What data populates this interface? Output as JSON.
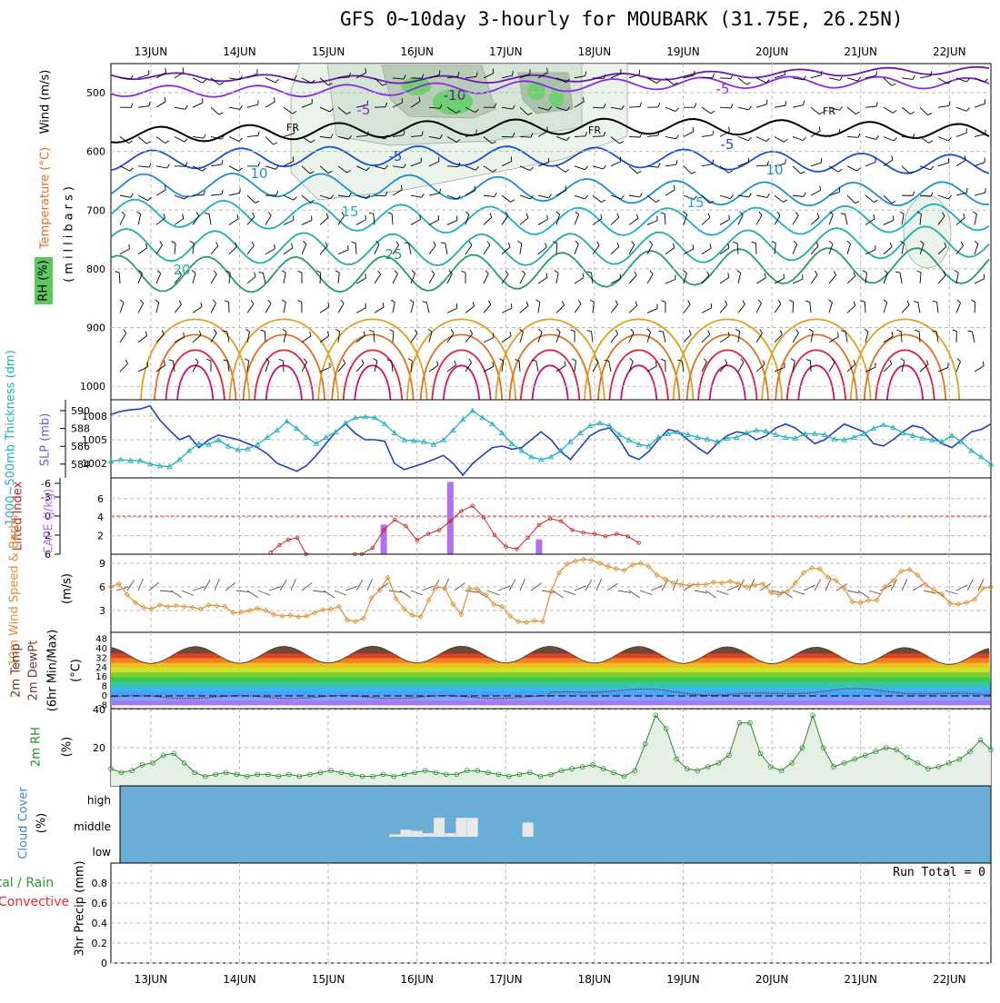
{
  "title": "GFS 0~10day 3-hourly for MOUBARK (31.75E, 26.25N)",
  "chart_data": [
    {
      "panel": "upper-air",
      "type": "contour",
      "ylabel_parts": [
        "RH (%)",
        "Temperature (°C)",
        "Wind (m/s)"
      ],
      "ylabel_units": "(millibars)",
      "x_labels": [
        "13JUN",
        "14JUN",
        "15JUN",
        "16JUN",
        "17JUN",
        "18JUN",
        "19JUN",
        "20JUN",
        "21JUN",
        "22JUN"
      ],
      "y_ticks": [
        500,
        600,
        700,
        800,
        900,
        1000
      ],
      "ylim": [
        1000,
        450
      ],
      "contour_labels": [
        "-10",
        "-5",
        "-5",
        "-5",
        "FR",
        "FR",
        "FR",
        "-5",
        "-5",
        "10",
        "10",
        "15",
        "15",
        "20",
        "25"
      ],
      "temperature_levels": [
        {
          "t": -10,
          "color": "#6a1ab0"
        },
        {
          "t": -5,
          "color": "#8a2be2"
        },
        {
          "t": 0,
          "color": "#000000"
        },
        {
          "t": 5,
          "color": "#1a4fd0"
        },
        {
          "t": 10,
          "color": "#1a90d0"
        },
        {
          "t": 15,
          "color": "#1ab0c0"
        },
        {
          "t": 20,
          "color": "#20b0a0"
        },
        {
          "t": 25,
          "color": "#20a060"
        },
        {
          "t": 30,
          "color": "#e0a020"
        },
        {
          "t": 35,
          "color": "#e07020"
        },
        {
          "t": 40,
          "color": "#e02040"
        }
      ]
    },
    {
      "panel": "thickness-slp",
      "type": "line",
      "ylabel_left": "1000~500mb Thickness (dm)",
      "ylabel_right": "SLP (mb)",
      "thickness_ticks": [
        584,
        586,
        588,
        590
      ],
      "slp_ticks": [
        1002,
        1005,
        1008
      ],
      "series": [
        {
          "name": "SLP (mb)",
          "color": "#2040c0",
          "values": [
            1008.2,
            1008.6,
            1008.8,
            1008.9,
            1009.3,
            1007.5,
            1006.2,
            1005.0,
            1005.5,
            1004.0,
            1005.0,
            1005.6,
            1005.3,
            1005.0,
            1004.5,
            1004.0,
            1003.2,
            1002.0,
            1001.5,
            1001.0,
            1001.7,
            1003.0,
            1004.5,
            1006.0,
            1007.0,
            1005.8,
            1005.0,
            1005.0,
            1004.8,
            1002.0,
            1001.2,
            1001.6,
            1002.0,
            1002.5,
            1003.0,
            1002.0,
            1000.5,
            1002.0,
            1003.0,
            1004.0,
            1004.2,
            1003.8,
            1004.0,
            1005.0,
            1006.0,
            1005.0,
            1003.5,
            1002.5,
            1004.0,
            1005.5,
            1006.2,
            1006.5,
            1005.0,
            1003.0,
            1002.5,
            1003.5,
            1005.0,
            1006.3,
            1006.0,
            1005.0,
            1004.0,
            1003.2,
            1004.5,
            1005.5,
            1006.0,
            1005.8,
            1005.0,
            1005.5,
            1006.5,
            1007.0,
            1006.5,
            1005.5,
            1004.5,
            1005.0,
            1006.0,
            1007.0,
            1006.5,
            1006.0,
            1004.5,
            1004.2,
            1005.0,
            1006.0,
            1006.8,
            1006.5,
            1005.5,
            1004.5,
            1004.0,
            1005.0,
            1006.0,
            1006.3,
            1007.0
          ]
        },
        {
          "name": "1000~500mb Thickness (dm)",
          "color": "#20b0c0",
          "values": [
            584.3,
            584.5,
            584.4,
            584.4,
            584.0,
            583.8,
            583.7,
            584.5,
            585.5,
            586.3,
            586.2,
            586.7,
            586.0,
            585.6,
            585.7,
            586.2,
            587.0,
            587.8,
            588.8,
            588.0,
            587.0,
            586.3,
            587.0,
            587.6,
            588.6,
            589.2,
            589.3,
            589.2,
            588.5,
            587.5,
            586.7,
            586.6,
            586.5,
            586.2,
            586.7,
            587.8,
            589.0,
            590.0,
            589.2,
            588.5,
            587.5,
            586.3,
            585.5,
            584.8,
            584.5,
            584.8,
            585.5,
            586.5,
            587.5,
            588.3,
            588.6,
            588.3,
            587.3,
            586.7,
            586.2,
            586.0,
            587.0,
            587.4,
            587.6,
            587.3,
            587.0,
            586.8,
            586.5,
            586.9,
            587.0,
            587.5,
            587.8,
            587.7,
            587.3,
            587.0,
            586.9,
            587.4,
            587.4,
            587.3,
            586.8,
            586.7,
            587.0,
            587.4,
            588.0,
            588.4,
            588.1,
            587.5,
            587.2,
            586.9,
            586.7,
            586.5,
            587.2,
            586.5,
            585.5,
            584.8,
            584.0
          ]
        }
      ]
    },
    {
      "panel": "lifted-cape",
      "type": "bar+line",
      "ylabel_left": "Lifted Index",
      "ylabel_right": "CAPE (J/kg)",
      "li_ticks": [
        "6",
        "2",
        "0",
        "-3",
        "-6"
      ],
      "cape_ticks": [
        2,
        4,
        6
      ],
      "series": [
        {
          "name": "Lifted Index",
          "color": "#d02020"
        },
        {
          "name": "CAPE (J/kg)",
          "color": "#b070f0"
        }
      ],
      "cape_bars": [
        {
          "day": 15.625,
          "value": 3.2
        },
        {
          "day": 16.375,
          "value": 7.8
        },
        {
          "day": 17.375,
          "value": 1.6
        }
      ]
    },
    {
      "panel": "wind-10m",
      "type": "line",
      "ylabel": "10m Wind Speed & Barbs",
      "yunit": "(m/s)",
      "y_ticks": [
        3,
        6,
        9
      ],
      "series": [
        {
          "name": "10m Wind Speed",
          "color": "#e09030",
          "values": [
            6.0,
            6.4,
            5.0,
            4.0,
            3.4,
            3.2,
            3.7,
            3.5,
            3.6,
            3.5,
            3.4,
            3.2,
            3.7,
            3.6,
            3.5,
            2.7,
            2.8,
            3.0,
            3.3,
            3.0,
            2.5,
            2.3,
            2.4,
            2.2,
            2.3,
            2.7,
            3.1,
            3.2,
            3.5,
            1.8,
            1.6,
            2.0,
            4.6,
            5.6,
            7.2,
            4.5,
            3.2,
            2.4,
            2.2,
            4.3,
            6.0,
            5.8,
            3.8,
            2.5,
            5.8,
            5.7,
            5.0,
            3.8,
            3.5,
            2.3,
            1.6,
            1.5,
            1.7,
            1.6,
            5.4,
            7.8,
            8.9,
            9.3,
            9.5,
            9.4,
            9.0,
            8.6,
            8.3,
            8.1,
            8.8,
            9.0,
            8.6,
            7.5,
            7.0,
            6.5,
            6.3,
            6.2,
            6.3,
            6.3,
            6.6,
            6.5,
            6.7,
            6.4,
            6.0,
            6.2,
            6.4,
            5.3,
            5.0,
            5.4,
            6.5,
            7.8,
            8.4,
            8.3,
            7.2,
            6.8,
            5.8,
            4.1,
            4.0,
            4.3,
            4.3,
            6.0,
            6.8,
            8.0,
            8.2,
            7.5,
            6.3,
            5.6,
            5.1,
            3.9,
            3.8,
            4.0,
            4.4,
            5.8,
            6.0
          ]
        }
      ]
    },
    {
      "panel": "temp-2m",
      "type": "area",
      "ylabel": "2m Temp 2m DewPt (6hr Min/Max)",
      "yunit": "(°C)",
      "y_ticks": [
        "-8",
        "0",
        "8",
        "16",
        "24",
        "32",
        "40",
        "48"
      ],
      "series": [
        {
          "name": "2m Temp",
          "color": "#6b3a2a"
        },
        {
          "name": "2m DewPt",
          "color": "#7a3020"
        }
      ]
    },
    {
      "panel": "rh-2m",
      "type": "area",
      "ylabel": "2m RH",
      "yunit": "(%)",
      "y_ticks": [
        20,
        40
      ],
      "series": [
        {
          "name": "2m RH",
          "color": "#2a8a2a",
          "values": [
            9,
            7,
            8,
            11,
            12,
            16,
            17,
            12,
            7,
            5,
            6,
            7,
            6,
            5,
            6,
            6,
            5,
            6,
            5,
            6,
            7,
            8,
            7,
            6,
            5,
            5,
            6,
            5,
            6,
            7,
            8,
            7,
            6,
            6,
            8,
            8,
            7,
            6,
            5,
            6,
            7,
            5,
            6,
            8,
            9,
            10,
            11,
            9,
            7,
            5,
            8,
            22,
            37,
            30,
            14,
            9,
            8,
            10,
            12,
            16,
            33,
            33,
            17,
            10,
            8,
            12,
            20,
            37,
            20,
            10,
            12,
            14,
            16,
            18,
            20,
            19,
            15,
            12,
            9,
            10,
            12,
            14,
            18,
            24,
            19
          ]
        }
      ]
    },
    {
      "panel": "cloud-cover",
      "type": "heatmap",
      "ylabel": "Cloud Cover",
      "yunit": "(%)",
      "levels": [
        "high",
        "middle",
        "low"
      ],
      "middle_cloud_pct": [
        {
          "day": 15.75,
          "value": 10
        },
        {
          "day": 15.875,
          "value": 30
        },
        {
          "day": 16.0,
          "value": 25
        },
        {
          "day": 16.125,
          "value": 15
        },
        {
          "day": 16.25,
          "value": 80
        },
        {
          "day": 16.375,
          "value": 15
        },
        {
          "day": 16.5,
          "value": 80
        },
        {
          "day": 16.625,
          "value": 80
        },
        {
          "day": 17.25,
          "value": 60
        }
      ]
    },
    {
      "panel": "precip",
      "type": "bar",
      "ylabel": "3hr Precip (mm)",
      "legend": [
        "Total / Rain",
        "Convective"
      ],
      "y_ticks": [
        "0",
        "0.2",
        "0.4",
        "0.6",
        "0.8"
      ],
      "run_total": "Run Total = 0",
      "values": []
    }
  ]
}
